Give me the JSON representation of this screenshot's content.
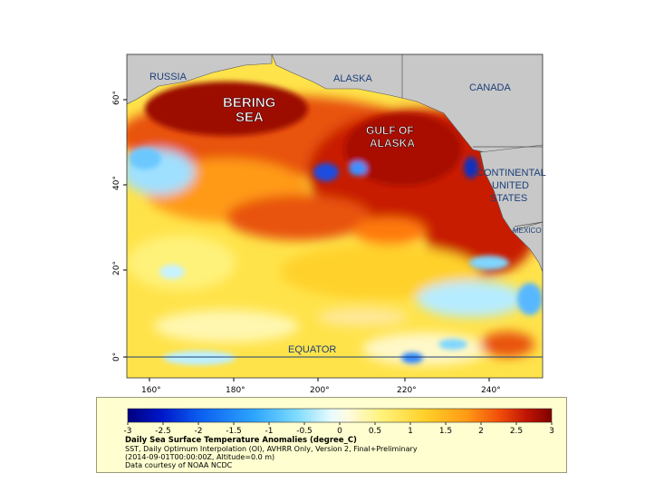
{
  "map": {
    "place_labels": {
      "russia": "RUSSIA",
      "alaska": "ALASKA",
      "canada": "CANADA",
      "bering_sea": [
        "BERING",
        "SEA"
      ],
      "gulf_of_alaska": [
        "GULF OF",
        "ALASKA"
      ],
      "continental_us": [
        "CONTINENTAL",
        "UNITED",
        "STATES"
      ],
      "mexico": "MEXICO",
      "equator": "EQUATOR"
    },
    "lat_ticks": [
      "0°",
      "20°",
      "40°",
      "60°"
    ],
    "lon_ticks": [
      "160°",
      "180°",
      "200°",
      "220°",
      "240°"
    ]
  },
  "legend": {
    "ticks": [
      "-3",
      "-2.5",
      "-2",
      "-1.5",
      "-1",
      "-0.5",
      "0",
      "0.5",
      "1",
      "1.5",
      "2",
      "2.5",
      "3"
    ],
    "colors": [
      "#00007f",
      "#0017c9",
      "#0b5ef0",
      "#2da6ff",
      "#7fdcff",
      "#e8fbff",
      "#fffbe0",
      "#fff27a",
      "#ffd12a",
      "#ff9a14",
      "#f04a0a",
      "#c01504",
      "#7f0000"
    ],
    "title": "Daily Sea Surface Temperature Anomalies (degree_C)",
    "line1": "SST, Daily Optimum Interpolation (OI), AVHRR Only, Version 2, Final+Preliminary",
    "line2": "(2014-09-01T00:00:00Z, Altitude=0.0 m)",
    "line3": "Data courtesy of NOAA NCDC"
  }
}
